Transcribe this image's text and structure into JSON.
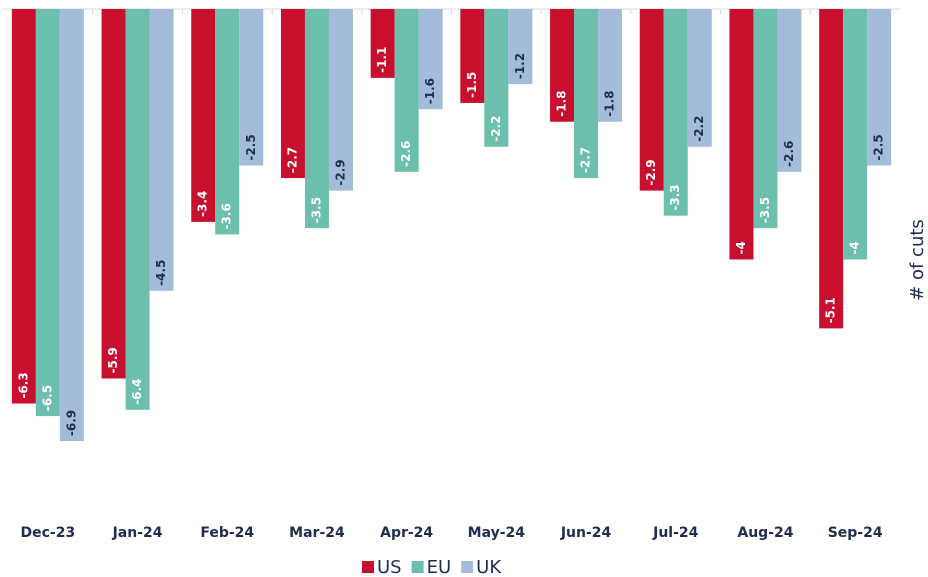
{
  "chart_data": {
    "type": "bar",
    "y_label": "# of cuts",
    "categories": [
      "Dec-23",
      "Jan-24",
      "Feb-24",
      "Mar-24",
      "Apr-24",
      "May-24",
      "Jun-24",
      "Jul-24",
      "Aug-24",
      "Sep-24"
    ],
    "series": [
      {
        "name": "US",
        "color": "#c8102e",
        "values": [
          -6.3,
          -5.9,
          -3.4,
          -2.7,
          -1.1,
          -1.5,
          -1.8,
          -2.9,
          -4.0,
          -5.1
        ]
      },
      {
        "name": "EU",
        "color": "#6dbfad",
        "values": [
          -6.5,
          -6.4,
          -3.6,
          -3.5,
          -2.6,
          -2.2,
          -2.7,
          -3.3,
          -3.5,
          -4.0
        ]
      },
      {
        "name": "UK",
        "color": "#a3bcd9",
        "values": [
          -6.9,
          -4.5,
          -2.5,
          -2.9,
          -1.6,
          -1.2,
          -1.8,
          -2.2,
          -2.6,
          -2.5
        ]
      }
    ],
    "ylim": [
      -8,
      0
    ],
    "legend": "bottom"
  }
}
